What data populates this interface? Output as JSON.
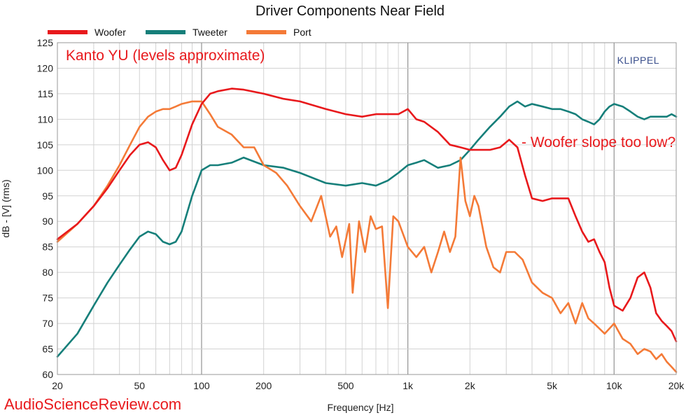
{
  "chart_data": {
    "type": "line",
    "title": "Driver Components Near Field",
    "xlabel": "Frequency [Hz]",
    "ylabel": "dB - [V]  (rms)",
    "x_scale": "log",
    "xlim": [
      20,
      20000
    ],
    "ylim": [
      60,
      125
    ],
    "grid": true,
    "legend_position": "top-left",
    "x_ticks": [
      20,
      50,
      100,
      200,
      500,
      1000,
      2000,
      5000,
      10000,
      20000
    ],
    "x_tick_labels": [
      "20",
      "50",
      "100",
      "200",
      "500",
      "1k",
      "2k",
      "5k",
      "10k",
      "20k"
    ],
    "y_ticks": [
      60,
      65,
      70,
      75,
      80,
      85,
      90,
      95,
      100,
      105,
      110,
      115,
      120,
      125
    ],
    "y_tick_labels": [
      "60",
      "65",
      "70",
      "75",
      "80",
      "85",
      "90",
      "95",
      "100",
      "105",
      "110",
      "115",
      "120",
      "125"
    ],
    "annotations": [
      "Kanto YU (levels approximate)",
      "- Woofer slope too low?",
      "KLIPPEL"
    ],
    "series": [
      {
        "name": "Woofer",
        "color": "#e8191c",
        "x": [
          20,
          25,
          30,
          35,
          40,
          45,
          50,
          55,
          60,
          65,
          70,
          75,
          80,
          90,
          100,
          110,
          120,
          140,
          160,
          200,
          250,
          300,
          400,
          500,
          600,
          700,
          800,
          900,
          1000,
          1100,
          1200,
          1400,
          1600,
          1800,
          2000,
          2200,
          2500,
          2800,
          3100,
          3400,
          3700,
          4000,
          4500,
          5000,
          5500,
          6000,
          6500,
          7000,
          7500,
          8000,
          8500,
          9000,
          9500,
          10000,
          11000,
          12000,
          13000,
          14000,
          15000,
          16000,
          17000,
          18000,
          19000,
          20000
        ],
        "y": [
          86.5,
          89.5,
          93,
          96.5,
          100,
          103,
          105,
          105.5,
          104.5,
          102,
          100,
          100.5,
          103,
          109,
          113,
          115,
          115.5,
          116,
          115.8,
          115,
          114,
          113.5,
          112,
          111,
          110.5,
          111,
          111,
          111,
          112,
          110,
          109.5,
          107.5,
          105,
          104.5,
          104,
          104,
          104,
          104.5,
          106,
          104.5,
          99,
          94.5,
          94,
          94.5,
          94.5,
          94.5,
          91,
          88,
          86,
          86.5,
          84,
          82,
          77,
          73.5,
          72.5,
          75,
          79,
          80,
          77,
          72,
          70.5,
          69.5,
          68.5,
          66.5
        ]
      },
      {
        "name": "Tweeter",
        "color": "#167f7a",
        "x": [
          20,
          25,
          30,
          35,
          40,
          45,
          50,
          55,
          60,
          65,
          70,
          75,
          80,
          90,
          100,
          110,
          120,
          140,
          160,
          200,
          250,
          300,
          400,
          500,
          600,
          700,
          800,
          900,
          1000,
          1100,
          1200,
          1400,
          1600,
          1800,
          2000,
          2200,
          2500,
          2800,
          3100,
          3400,
          3700,
          4000,
          4500,
          5000,
          5500,
          6000,
          6500,
          7000,
          7500,
          8000,
          8500,
          9000,
          9500,
          10000,
          11000,
          12000,
          13000,
          14000,
          15000,
          16000,
          17000,
          18000,
          19000,
          20000
        ],
        "y": [
          63.5,
          68,
          73.5,
          78,
          81.5,
          84.5,
          87,
          88,
          87.5,
          86,
          85.5,
          86,
          88,
          95,
          100,
          101,
          101,
          101.5,
          102.5,
          101,
          100.5,
          99.5,
          97.5,
          97,
          97.5,
          97,
          98,
          99.5,
          101,
          101.5,
          102,
          100.5,
          101,
          102,
          104,
          106,
          108.5,
          110.5,
          112.5,
          113.5,
          112.5,
          113,
          112.5,
          112,
          112,
          111.5,
          111,
          110,
          109.5,
          109,
          110,
          111.5,
          112.5,
          113,
          112.5,
          111.5,
          110.5,
          110,
          110.5,
          110.5,
          110.5,
          110.5,
          111,
          110.5
        ]
      },
      {
        "name": "Port",
        "color": "#f47a37",
        "x": [
          20,
          25,
          30,
          35,
          40,
          45,
          50,
          55,
          60,
          65,
          70,
          75,
          80,
          90,
          100,
          110,
          120,
          140,
          160,
          180,
          200,
          230,
          260,
          300,
          340,
          380,
          420,
          450,
          480,
          520,
          540,
          580,
          620,
          660,
          700,
          750,
          800,
          850,
          900,
          1000,
          1100,
          1200,
          1300,
          1400,
          1500,
          1600,
          1700,
          1800,
          1900,
          2000,
          2100,
          2200,
          2400,
          2600,
          2800,
          3000,
          3300,
          3600,
          4000,
          4500,
          5000,
          5500,
          6000,
          6500,
          7000,
          7500,
          8000,
          9000,
          10000,
          11000,
          12000,
          13000,
          14000,
          15000,
          16000,
          17000,
          18000,
          19000,
          20000
        ],
        "y": [
          86,
          89.5,
          93,
          97,
          101,
          105,
          108.5,
          110.5,
          111.5,
          112,
          112,
          112.5,
          113,
          113.5,
          113.5,
          111,
          108.5,
          107,
          104.5,
          104.5,
          101,
          99.5,
          97,
          93,
          90,
          95,
          87,
          89,
          83,
          89.5,
          76,
          90,
          84,
          91,
          88.5,
          89,
          73,
          91,
          90,
          85,
          83,
          85,
          80,
          84,
          88,
          84,
          87,
          102.5,
          94,
          91,
          95,
          93,
          85,
          81,
          80,
          84,
          84,
          82.5,
          78,
          76,
          75,
          72,
          74,
          70,
          74,
          71,
          70,
          68,
          70,
          67,
          66,
          64,
          65,
          64.5,
          63,
          64,
          62.5,
          61.5,
          60.5
        ]
      }
    ]
  },
  "watermark": "AudioScienceReview.com"
}
